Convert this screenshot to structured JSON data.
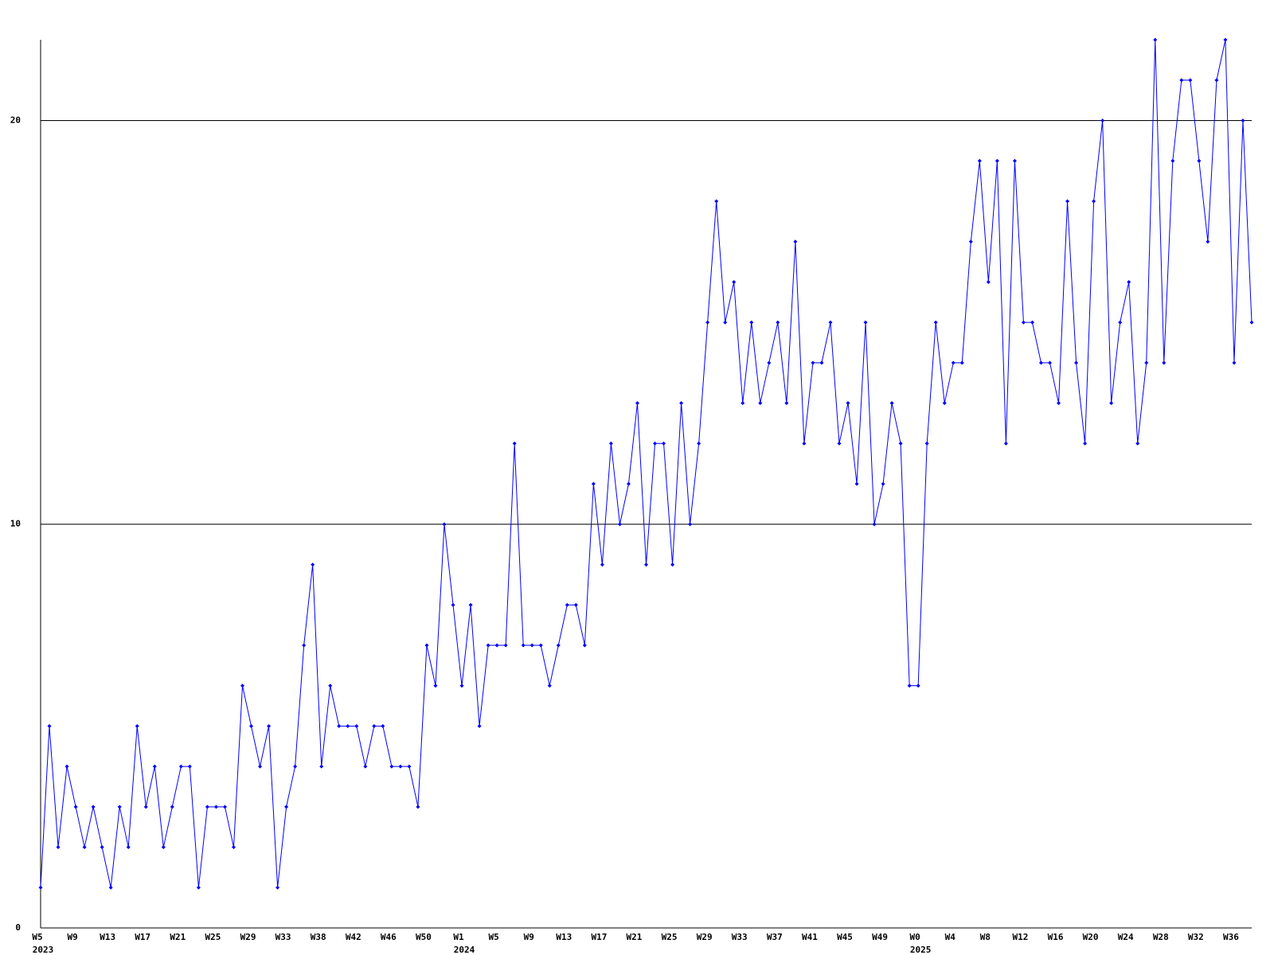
{
  "chart_data": {
    "type": "line",
    "categories": [
      "W5",
      null,
      null,
      null,
      "W9",
      null,
      null,
      null,
      "W13",
      null,
      null,
      null,
      "W17",
      null,
      null,
      null,
      "W21",
      null,
      null,
      null,
      "W25",
      null,
      null,
      null,
      "W29",
      null,
      null,
      null,
      "W33",
      null,
      null,
      null,
      "W38",
      null,
      null,
      null,
      "W42",
      null,
      null,
      null,
      "W46",
      null,
      null,
      null,
      "W50",
      null,
      null,
      null,
      "W1",
      null,
      null,
      null,
      "W5",
      null,
      null,
      null,
      "W9",
      null,
      null,
      null,
      "W13",
      null,
      null,
      null,
      "W17",
      null,
      null,
      null,
      "W21",
      null,
      null,
      null,
      "W25",
      null,
      null,
      null,
      "W29",
      null,
      null,
      null,
      "W33",
      null,
      null,
      null,
      "W37",
      null,
      null,
      null,
      "W41",
      null,
      null,
      null,
      "W45",
      null,
      null,
      null,
      "W49",
      null,
      null,
      null,
      "W0",
      null,
      null,
      null,
      "W4",
      null,
      null,
      null,
      "W8",
      null,
      null,
      null,
      "W12",
      null,
      null,
      null,
      "W16",
      null,
      null,
      null,
      "W20",
      null,
      null,
      null,
      "W24",
      null,
      null,
      null,
      "W28",
      null,
      null,
      null,
      "W32",
      null,
      null,
      null,
      "W36",
      null,
      null
    ],
    "category_years": [
      "2023",
      null,
      null,
      null,
      null,
      null,
      null,
      null,
      null,
      null,
      null,
      null,
      null,
      null,
      null,
      null,
      null,
      null,
      null,
      null,
      null,
      null,
      null,
      null,
      null,
      null,
      null,
      null,
      null,
      null,
      null,
      null,
      null,
      null,
      null,
      null,
      null,
      null,
      null,
      null,
      null,
      null,
      null,
      null,
      null,
      null,
      null,
      null,
      "2024",
      null,
      null,
      null,
      null,
      null,
      null,
      null,
      null,
      null,
      null,
      null,
      null,
      null,
      null,
      null,
      null,
      null,
      null,
      null,
      null,
      null,
      null,
      null,
      null,
      null,
      null,
      null,
      null,
      null,
      null,
      null,
      null,
      null,
      null,
      null,
      null,
      null,
      null,
      null,
      null,
      null,
      null,
      null,
      null,
      null,
      null,
      null,
      null,
      null,
      null,
      null,
      "2025",
      null,
      null,
      null,
      null,
      null,
      null,
      null,
      null,
      null,
      null,
      null,
      null,
      null,
      null,
      null,
      null,
      null,
      null,
      null,
      null,
      null,
      null,
      null,
      null,
      null,
      null,
      null,
      null,
      null,
      null,
      null,
      null,
      null,
      null,
      null,
      null,
      null,
      null
    ],
    "values": [
      1,
      5,
      2,
      4,
      3,
      2,
      3,
      2,
      1,
      3,
      2,
      5,
      3,
      4,
      2,
      3,
      4,
      4,
      1,
      3,
      3,
      3,
      2,
      6,
      5,
      4,
      5,
      1,
      3,
      4,
      7,
      9,
      4,
      6,
      5,
      5,
      5,
      4,
      5,
      5,
      4,
      4,
      4,
      3,
      7,
      6,
      10,
      8,
      6,
      8,
      5,
      7,
      7,
      7,
      12,
      7,
      7,
      7,
      6,
      7,
      8,
      8,
      7,
      11,
      9,
      12,
      10,
      11,
      13,
      9,
      12,
      12,
      9,
      13,
      10,
      12,
      15,
      18,
      15,
      16,
      13,
      15,
      13,
      14,
      15,
      13,
      17,
      12,
      14,
      14,
      15,
      12,
      13,
      11,
      15,
      10,
      11,
      13,
      12,
      6,
      6,
      12,
      15,
      13,
      14,
      14,
      17,
      19,
      16,
      19,
      12,
      19,
      15,
      15,
      14,
      14,
      13,
      18,
      14,
      12,
      18,
      20,
      13,
      15,
      16,
      12,
      14,
      22,
      14,
      19,
      21,
      21,
      19,
      17,
      21,
      22,
      14,
      20,
      15
    ],
    "color": "#0000ff",
    "ylim": [
      0,
      22
    ],
    "yticks": [
      0,
      10,
      20
    ],
    "grid": true
  }
}
